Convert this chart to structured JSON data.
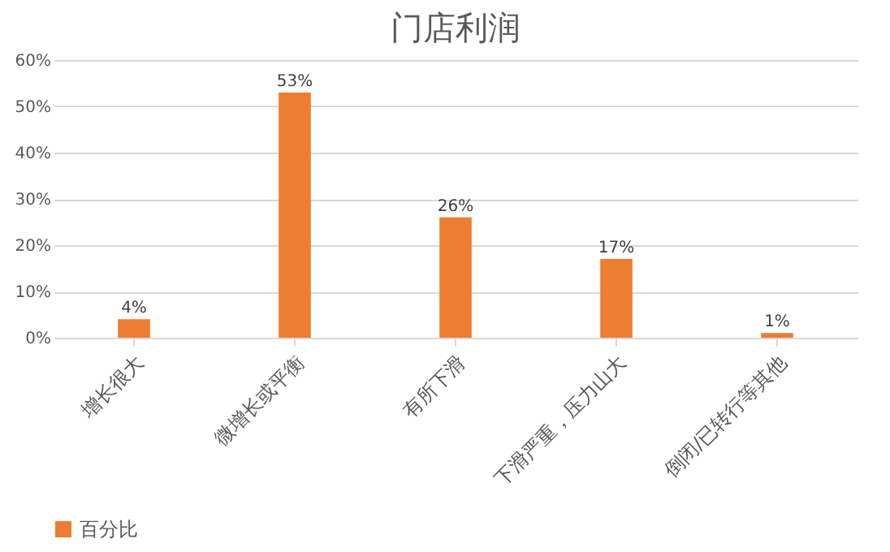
{
  "chart_data": {
    "type": "bar",
    "title": "门店利润",
    "categories": [
      "增长很大",
      "微增长或平衡",
      "有所下滑",
      "下滑严重，压力山大",
      "倒闭/已转行等其他"
    ],
    "series": [
      {
        "name": "百分比",
        "color": "#ed7d31",
        "values": [
          4,
          53,
          26,
          17,
          1
        ]
      }
    ],
    "value_labels": [
      "4%",
      "53%",
      "26%",
      "17%",
      "1%"
    ],
    "ylim": [
      0,
      60
    ],
    "yticks": [
      {
        "value": 0,
        "label": "0%"
      },
      {
        "value": 10,
        "label": "10%"
      },
      {
        "value": 20,
        "label": "20%"
      },
      {
        "value": 30,
        "label": "30%"
      },
      {
        "value": 40,
        "label": "40%"
      },
      {
        "value": 50,
        "label": "50%"
      },
      {
        "value": 60,
        "label": "60%"
      }
    ],
    "grid": "y",
    "legend": "bottom"
  }
}
